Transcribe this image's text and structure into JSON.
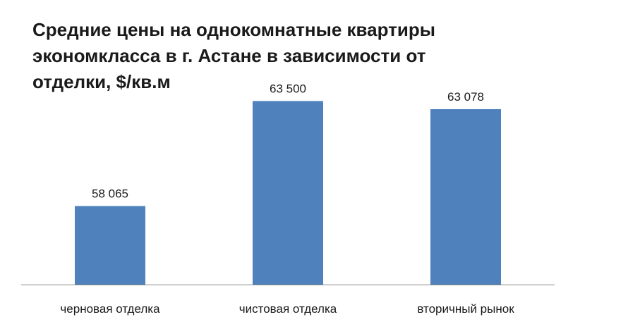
{
  "chart_data": {
    "type": "bar",
    "title_lines": [
      "Средние цены на однокомнатные квартиры",
      "экономкласса в г. Астане в зависимости от",
      "отделки, $/кв.м"
    ],
    "categories": [
      "черновая отделка",
      "чистовая отделка",
      "вторичный рынок"
    ],
    "values": [
      58065,
      63500,
      63078
    ],
    "value_labels": [
      "58 065",
      "63 500",
      "63 078"
    ],
    "xlabel": "",
    "ylabel": "",
    "ylim": [
      54000,
      64500
    ],
    "grid": false,
    "legend": "none",
    "bar_color": "#4f81bd",
    "axis_color": "#868686"
  }
}
